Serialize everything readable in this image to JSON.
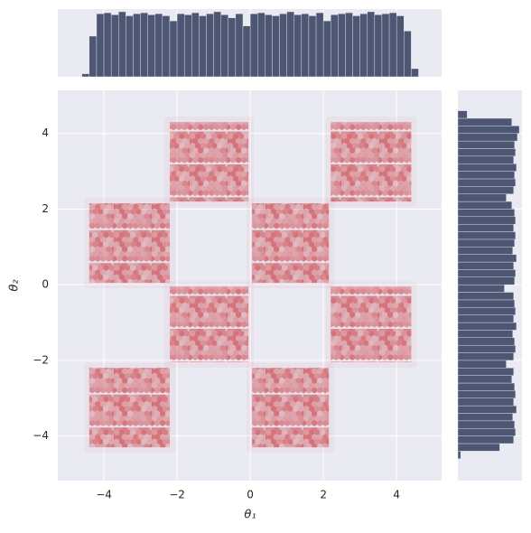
{
  "chart_data": {
    "type": "jointplot",
    "xlabel": "θ₁",
    "ylabel": "θ₂",
    "xlim": [
      -5.26,
      5.23
    ],
    "ylim": [
      -5.18,
      5.14
    ],
    "xticks": [
      {
        "value": -4,
        "label": "−4"
      },
      {
        "value": -2,
        "label": "−2"
      },
      0,
      2,
      4
    ],
    "yticks": [
      {
        "value": -4,
        "label": "−4"
      },
      {
        "value": -2,
        "label": "−2"
      },
      0,
      2,
      4
    ],
    "grid": true,
    "color": "#d0585f",
    "squares": [
      {
        "x": [
          -2.2,
          -0.05
        ],
        "y": [
          2.2,
          4.3
        ]
      },
      {
        "x": [
          2.2,
          4.4
        ],
        "y": [
          2.2,
          4.3
        ]
      },
      {
        "x": [
          -4.4,
          -2.2
        ],
        "y": [
          0.05,
          2.15
        ]
      },
      {
        "x": [
          0.05,
          2.15
        ],
        "y": [
          0.05,
          2.15
        ]
      },
      {
        "x": [
          -2.2,
          -0.05
        ],
        "y": [
          -2.05,
          -0.05
        ]
      },
      {
        "x": [
          2.2,
          4.4
        ],
        "y": [
          -2.05,
          -0.05
        ]
      },
      {
        "x": [
          -4.4,
          -2.2
        ],
        "y": [
          -4.3,
          -2.2
        ]
      },
      {
        "x": [
          0.05,
          2.15
        ],
        "y": [
          -4.3,
          -2.2
        ]
      }
    ],
    "marginal_x": {
      "color": "#4d5672",
      "bins": [
        -4.6,
        -4.4,
        -4.2,
        -4.0,
        -3.8,
        -3.6,
        -3.4,
        -3.2,
        -3.0,
        -2.8,
        -2.6,
        -2.4,
        -2.2,
        -2.0,
        -1.8,
        -1.6,
        -1.4,
        -1.2,
        -1.0,
        -0.8,
        -0.6,
        -0.4,
        -0.2,
        0.0,
        0.2,
        0.4,
        0.6,
        0.8,
        1.0,
        1.2,
        1.4,
        1.6,
        1.8,
        2.0,
        2.2,
        2.4,
        2.6,
        2.8,
        3.0,
        3.2,
        3.4,
        3.6,
        3.8,
        4.0,
        4.2,
        4.4,
        4.6
      ],
      "values": [
        3,
        40,
        62,
        63,
        61,
        64,
        60,
        62,
        63,
        61,
        62,
        60,
        55,
        62,
        61,
        63,
        60,
        62,
        64,
        61,
        58,
        62,
        50,
        62,
        63,
        61,
        60,
        62,
        64,
        61,
        62,
        60,
        63,
        55,
        61,
        62,
        63,
        60,
        62,
        64,
        61,
        62,
        63,
        60,
        45,
        8
      ]
    },
    "marginal_y": {
      "color": "#4d5672",
      "bins": [
        -4.6,
        -4.4,
        -4.2,
        -4.0,
        -3.8,
        -3.6,
        -3.4,
        -3.2,
        -3.0,
        -2.8,
        -2.6,
        -2.4,
        -2.2,
        -2.0,
        -1.8,
        -1.6,
        -1.4,
        -1.2,
        -1.0,
        -0.8,
        -0.6,
        -0.4,
        -0.2,
        0.0,
        0.2,
        0.4,
        0.6,
        0.8,
        1.0,
        1.2,
        1.4,
        1.6,
        1.8,
        2.0,
        2.2,
        2.4,
        2.6,
        2.8,
        3.0,
        3.2,
        3.4,
        3.6,
        3.8,
        4.0,
        4.2,
        4.4,
        4.6
      ],
      "values": [
        3,
        45,
        60,
        62,
        61,
        59,
        63,
        60,
        62,
        61,
        58,
        60,
        52,
        60,
        62,
        61,
        59,
        63,
        60,
        62,
        61,
        60,
        50,
        61,
        62,
        60,
        63,
        59,
        61,
        62,
        60,
        62,
        61,
        58,
        52,
        60,
        62,
        61,
        63,
        60,
        62,
        61,
        64,
        66,
        58,
        10
      ]
    }
  }
}
